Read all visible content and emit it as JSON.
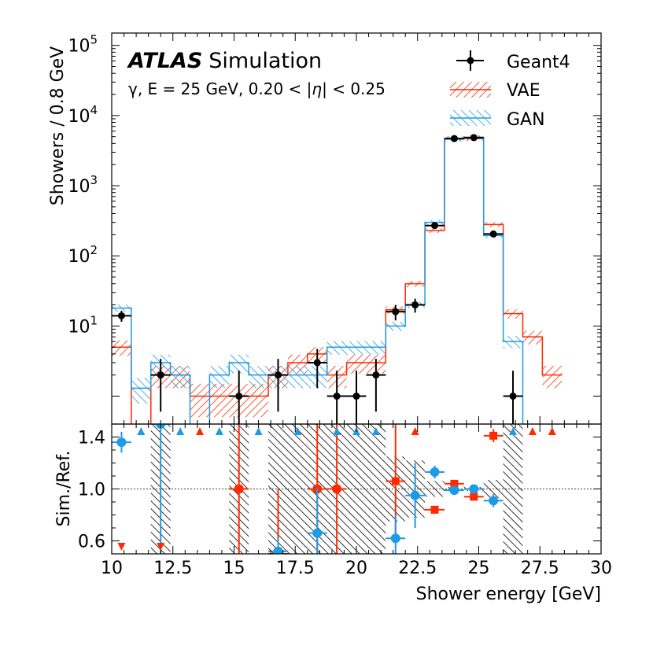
{
  "chart_data": [
    {
      "type": "histogram",
      "panel": "main",
      "title_bold": "ATLAS",
      "title_rest": "Simulation",
      "subtitle_pre": "γ, E = 25 GeV, 0.20 < |",
      "subtitle_eta": "η",
      "subtitle_post": "| < 0.25",
      "ylabel": "Showers / 0.8 GeV",
      "yscale": "log",
      "ylim": [
        0.4,
        150000
      ],
      "xlim": [
        10,
        30
      ],
      "ytick_labels": [
        {
          "value": 10,
          "base": "10",
          "exp": "1"
        },
        {
          "value": 100,
          "base": "10",
          "exp": "2"
        },
        {
          "value": 1000,
          "base": "10",
          "exp": "3"
        },
        {
          "value": 10000,
          "base": "10",
          "exp": "4"
        },
        {
          "value": 100000,
          "base": "10",
          "exp": "5"
        }
      ],
      "bin_edges": [
        10.0,
        10.8,
        11.6,
        12.4,
        13.2,
        14.0,
        14.8,
        15.6,
        16.4,
        17.2,
        18.0,
        18.8,
        19.6,
        20.4,
        21.2,
        22.0,
        22.8,
        23.6,
        24.4,
        25.2,
        26.0,
        26.8,
        27.6,
        28.4
      ],
      "legend": {
        "position": "top-right",
        "entries": [
          "Geant4",
          "VAE",
          "GAN"
        ]
      },
      "series": [
        {
          "name": "Geant4",
          "style": "points",
          "color": "#000000",
          "points": [
            {
              "x": 10.4,
              "y": 14,
              "err": [
                2.5,
                2.5
              ]
            },
            {
              "x": 12.0,
              "y": 2,
              "err": [
                1.4,
                1.4
              ]
            },
            {
              "x": 15.2,
              "y": 1,
              "err": [
                0.7,
                1.3
              ]
            },
            {
              "x": 16.8,
              "y": 2,
              "err": [
                1.4,
                1.4
              ]
            },
            {
              "x": 18.4,
              "y": 3,
              "err": [
                1.7,
                1.7
              ]
            },
            {
              "x": 19.2,
              "y": 1,
              "err": [
                0.7,
                1.3
              ]
            },
            {
              "x": 20.0,
              "y": 1,
              "err": [
                0.7,
                1.3
              ]
            },
            {
              "x": 20.8,
              "y": 2,
              "err": [
                1.4,
                1.4
              ]
            },
            {
              "x": 21.6,
              "y": 16,
              "err": [
                4,
                4
              ]
            },
            {
              "x": 22.4,
              "y": 20,
              "err": [
                4.5,
                4.5
              ]
            },
            {
              "x": 23.2,
              "y": 270,
              "err": [
                16,
                16
              ]
            },
            {
              "x": 24.0,
              "y": 4700,
              "err": [
                70,
                70
              ]
            },
            {
              "x": 24.8,
              "y": 4850,
              "err": [
                70,
                70
              ]
            },
            {
              "x": 25.6,
              "y": 205,
              "err": [
                14,
                14
              ]
            },
            {
              "x": 26.4,
              "y": 1,
              "err": [
                0.7,
                1.3
              ]
            }
          ]
        },
        {
          "name": "VAE",
          "style": "hatched-step",
          "color": "#ff2a00",
          "values": [
            5,
            0,
            2,
            2,
            1,
            1,
            1,
            1,
            2,
            3,
            4,
            2,
            3,
            3,
            17,
            40,
            230,
            4700,
            4700,
            280,
            15,
            7,
            2
          ],
          "rel_err": [
            0.25,
            0,
            0.35,
            0.35,
            0.5,
            0.5,
            0.5,
            0.5,
            0.35,
            0.3,
            0.25,
            0.35,
            0.3,
            0.3,
            0.12,
            0.1,
            0.04,
            0.015,
            0.015,
            0.04,
            0.15,
            0.22,
            0.35
          ]
        },
        {
          "name": "GAN",
          "style": "hatched-step",
          "color": "#1e9be6",
          "values": [
            18,
            1.3,
            3,
            2,
            0,
            2,
            3,
            2,
            2,
            2,
            2,
            5,
            5,
            5,
            10,
            20,
            300,
            4600,
            4900,
            195,
            6,
            0,
            0
          ],
          "rel_err": [
            0.12,
            0.4,
            0.3,
            0.35,
            0,
            0.35,
            0.3,
            0.35,
            0.35,
            0.35,
            0.35,
            0.22,
            0.22,
            0.22,
            0.15,
            0.1,
            0.03,
            0.015,
            0.015,
            0.04,
            0.2,
            0,
            0
          ]
        }
      ]
    },
    {
      "type": "scatter",
      "panel": "ratio",
      "ylabel": "Sim./Ref.",
      "xlabel": "Shower energy [GeV]",
      "xlim": [
        10,
        30
      ],
      "ylim": [
        0.5,
        1.5
      ],
      "reference_line": 1.0,
      "xticks": [
        10,
        12.5,
        15,
        17.5,
        20,
        22.5,
        25,
        27.5,
        30
      ],
      "xtick_labels": [
        "10",
        "12.5",
        "15",
        "17.5",
        "20",
        "22.5",
        "25",
        "27.5",
        "30"
      ],
      "yticks": [
        0.6,
        1.0,
        1.4
      ],
      "ytick_labels": [
        "0.6",
        "1.0",
        "1.4"
      ],
      "uncertainty_bands": [
        {
          "x0": 11.6,
          "x1": 12.4,
          "lo": 0.5,
          "hi": 1.5
        },
        {
          "x0": 14.8,
          "x1": 15.6,
          "lo": 0.5,
          "hi": 1.5
        },
        {
          "x0": 16.4,
          "x1": 17.2,
          "lo": 0.5,
          "hi": 1.5
        },
        {
          "x0": 17.2,
          "x1": 18.0,
          "lo": 0.5,
          "hi": 1.5
        },
        {
          "x0": 18.0,
          "x1": 18.8,
          "lo": 0.5,
          "hi": 1.5
        },
        {
          "x0": 18.8,
          "x1": 19.6,
          "lo": 0.5,
          "hi": 1.5
        },
        {
          "x0": 19.6,
          "x1": 20.4,
          "lo": 0.5,
          "hi": 1.5
        },
        {
          "x0": 20.4,
          "x1": 21.2,
          "lo": 0.5,
          "hi": 1.5
        },
        {
          "x0": 21.2,
          "x1": 22.0,
          "lo": 0.75,
          "hi": 1.25
        },
        {
          "x0": 22.0,
          "x1": 22.8,
          "lo": 0.78,
          "hi": 1.22
        },
        {
          "x0": 22.8,
          "x1": 23.6,
          "lo": 0.94,
          "hi": 1.06
        },
        {
          "x0": 23.6,
          "x1": 24.4,
          "lo": 0.985,
          "hi": 1.015
        },
        {
          "x0": 24.4,
          "x1": 25.2,
          "lo": 0.985,
          "hi": 1.015
        },
        {
          "x0": 25.2,
          "x1": 26.0,
          "lo": 0.93,
          "hi": 1.07
        },
        {
          "x0": 26.0,
          "x1": 26.8,
          "lo": 0.5,
          "hi": 1.5
        }
      ],
      "series": [
        {
          "name": "VAE",
          "color": "#ff2a00",
          "marker": "circle-then-square",
          "points": [
            {
              "x": 15.2,
              "y": 1.0,
              "err": 0.55,
              "marker": "circle"
            },
            {
              "x": 16.8,
              "y": 0.5,
              "err": 0.5,
              "marker": "circle"
            },
            {
              "x": 18.4,
              "y": 1.0,
              "err": 0.55,
              "marker": "circle"
            },
            {
              "x": 19.2,
              "y": 1.0,
              "err": 0.55,
              "marker": "circle"
            },
            {
              "x": 21.6,
              "y": 1.06,
              "err": 0.45,
              "marker": "square"
            },
            {
              "x": 23.2,
              "y": 0.84,
              "err": 0.03,
              "marker": "square"
            },
            {
              "x": 24.0,
              "y": 1.04,
              "err": 0.02,
              "marker": "square"
            },
            {
              "x": 24.8,
              "y": 0.94,
              "err": 0.02,
              "marker": "square"
            },
            {
              "x": 25.6,
              "y": 1.41,
              "err": 0.05,
              "marker": "square"
            }
          ],
          "out_of_range_up": [
            13.6,
            22.4,
            27.2,
            28.0
          ],
          "out_of_range_down": [
            10.4,
            12.0
          ]
        },
        {
          "name": "GAN",
          "color": "#1e9be6",
          "marker": "plus",
          "points": [
            {
              "x": 10.4,
              "y": 1.36,
              "err": 0.08
            },
            {
              "x": 12.0,
              "y": 1.5,
              "err": 1.0
            },
            {
              "x": 16.8,
              "y": 0.52,
              "err": 0.1
            },
            {
              "x": 18.4,
              "y": 0.66,
              "err": 0.35
            },
            {
              "x": 21.6,
              "y": 0.62,
              "err": 0.18
            },
            {
              "x": 22.4,
              "y": 0.95,
              "err": 0.25
            },
            {
              "x": 23.2,
              "y": 1.13,
              "err": 0.05
            },
            {
              "x": 24.0,
              "y": 0.99,
              "err": 0.02
            },
            {
              "x": 24.8,
              "y": 1.0,
              "err": 0.02
            },
            {
              "x": 25.6,
              "y": 0.91,
              "err": 0.05
            }
          ],
          "out_of_range_up": [
            11.2,
            12.8,
            14.4,
            16.0,
            17.6,
            19.2,
            20.0,
            20.8,
            26.4
          ]
        }
      ]
    }
  ]
}
